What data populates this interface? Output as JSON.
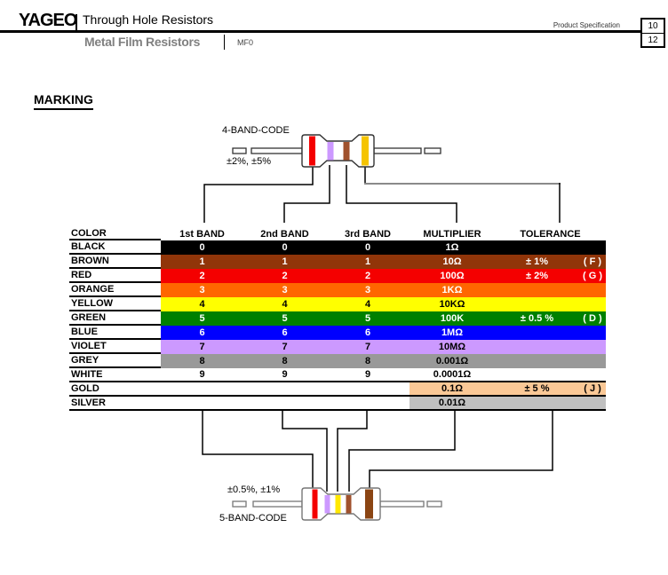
{
  "header": {
    "logo": "YAGEO",
    "title": "Through Hole Resistors",
    "subtitle": "Metal Film Resistors",
    "model": "MF0",
    "spec_label": "Product Specification",
    "page_current": "10",
    "page_total": "12"
  },
  "section_heading": "MARKING",
  "four_band": {
    "label": "4-BAND-CODE",
    "tolerance_note": "±2%, ±5%",
    "bands": [
      {
        "name": "red",
        "color": "#F40000"
      },
      {
        "name": "violet",
        "color": "#CC99FF"
      },
      {
        "name": "brown",
        "color": "#A0522D"
      },
      {
        "name": "gold",
        "color": "#F5C400"
      }
    ]
  },
  "five_band": {
    "label": "5-BAND-CODE",
    "tolerance_note": "±0.5%, ±1%",
    "bands": [
      {
        "name": "red",
        "color": "#F40000"
      },
      {
        "name": "violet",
        "color": "#CC99FF"
      },
      {
        "name": "yellow",
        "color": "#FFE800"
      },
      {
        "name": "brown",
        "color": "#A0522D"
      },
      {
        "name": "dark-brown",
        "color": "#8B4513"
      }
    ]
  },
  "table": {
    "headers": [
      "COLOR",
      "1st BAND",
      "2nd BAND",
      "3rd BAND",
      "MULTIPLIER",
      "TOLERANCE"
    ],
    "rows": [
      {
        "color": "BLACK",
        "bg": "#000000",
        "fg": "#FFFFFF",
        "band1": "0",
        "band2": "0",
        "band3": "0",
        "multiplier": "1Ω",
        "tolerance": "",
        "tol_letter": "",
        "partial": false,
        "bordered": false
      },
      {
        "color": "BROWN",
        "bg": "#913509",
        "fg": "#FFFFFF",
        "band1": "1",
        "band2": "1",
        "band3": "1",
        "multiplier": "10Ω",
        "tolerance": "± 1%",
        "tol_letter": "( F )",
        "partial": false,
        "bordered": false
      },
      {
        "color": "RED",
        "bg": "#F40000",
        "fg": "#FFFFFF",
        "band1": "2",
        "band2": "2",
        "band3": "2",
        "multiplier": "100Ω",
        "tolerance": "± 2%",
        "tol_letter": "( G )",
        "partial": false,
        "bordered": false
      },
      {
        "color": "ORANGE",
        "bg": "#FF6600",
        "fg": "#FFFFFF",
        "band1": "3",
        "band2": "3",
        "band3": "3",
        "multiplier": "1KΩ",
        "tolerance": "",
        "tol_letter": "",
        "partial": false,
        "bordered": false
      },
      {
        "color": "YELLOW",
        "bg": "#FFFF00",
        "fg": "#000000",
        "band1": "4",
        "band2": "4",
        "band3": "4",
        "multiplier": "10KΩ",
        "tolerance": "",
        "tol_letter": "",
        "partial": false,
        "bordered": false
      },
      {
        "color": "GREEN",
        "bg": "#008000",
        "fg": "#FFFFFF",
        "band1": "5",
        "band2": "5",
        "band3": "5",
        "multiplier": "100K",
        "tolerance": "± 0.5 %",
        "tol_letter": "( D )",
        "partial": false,
        "bordered": false
      },
      {
        "color": "BLUE",
        "bg": "#0000FF",
        "fg": "#FFFFFF",
        "band1": "6",
        "band2": "6",
        "band3": "6",
        "multiplier": "1MΩ",
        "tolerance": "",
        "tol_letter": "",
        "partial": false,
        "bordered": false
      },
      {
        "color": "VIOLET",
        "bg": "#CC99FF",
        "fg": "#000000",
        "band1": "7",
        "band2": "7",
        "band3": "7",
        "multiplier": "10MΩ",
        "tolerance": "",
        "tol_letter": "",
        "partial": false,
        "bordered": false
      },
      {
        "color": "GREY",
        "bg": "#999999",
        "fg": "#000000",
        "band1": "8",
        "band2": "8",
        "band3": "8",
        "multiplier": "0.001Ω",
        "tolerance": "",
        "tol_letter": "",
        "partial": false,
        "bordered": false
      },
      {
        "color": "WHITE",
        "bg": "#FFFFFF",
        "fg": "#000000",
        "band1": "9",
        "band2": "9",
        "band3": "9",
        "multiplier": "0.0001Ω",
        "tolerance": "",
        "tol_letter": "",
        "partial": false,
        "bordered": true
      },
      {
        "color": "GOLD",
        "bg": "#FAC896",
        "fg": "#000000",
        "band1": "",
        "band2": "",
        "band3": "",
        "multiplier": "0.1Ω",
        "tolerance": "± 5 %",
        "tol_letter": "( J )",
        "partial": true,
        "bordered": true
      },
      {
        "color": "SILVER",
        "bg": "#C0C0C0",
        "fg": "#000000",
        "band1": "",
        "band2": "",
        "band3": "",
        "multiplier": "0.01Ω",
        "tolerance": "",
        "tol_letter": "",
        "partial": true,
        "bordered": true
      }
    ]
  }
}
